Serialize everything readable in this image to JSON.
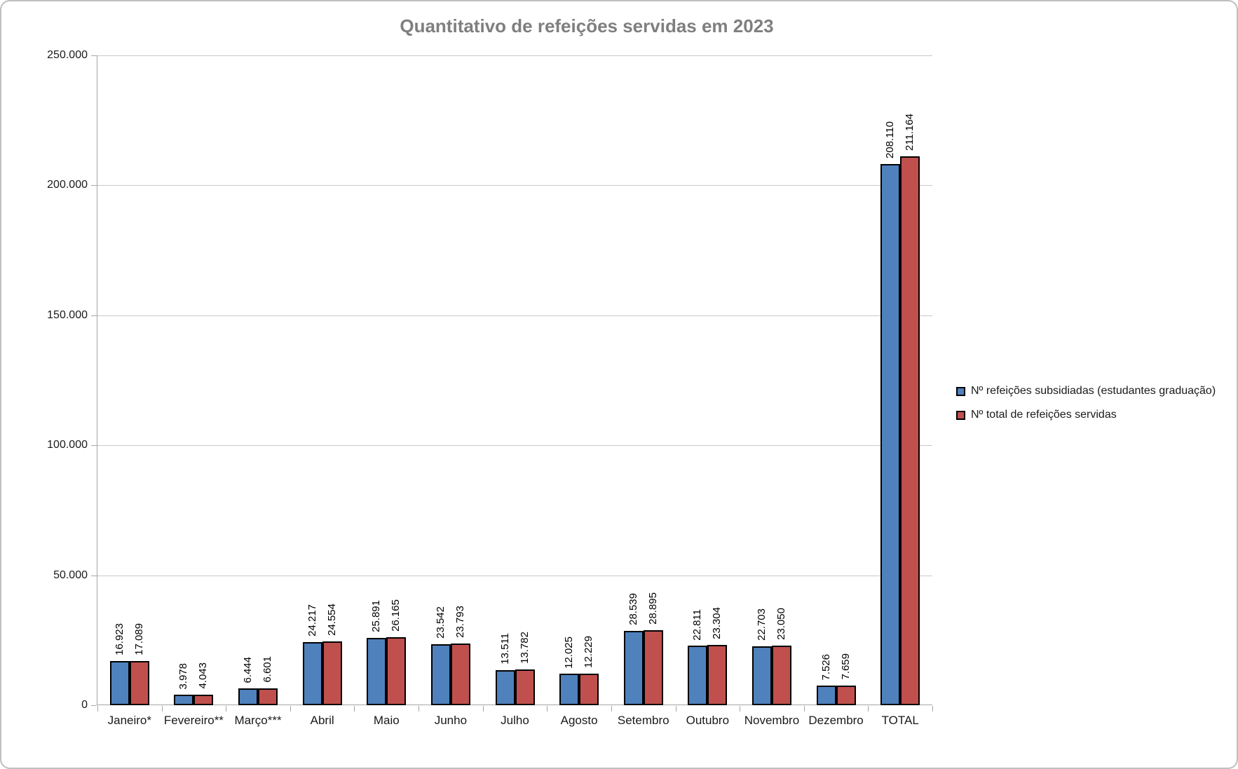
{
  "title": "Quantitativo de refeições servidas em 2023",
  "legend": {
    "items": [
      {
        "label": "Nº refeições subsidiadas (estudantes graduação)",
        "color": "#4F81BD"
      },
      {
        "label": "Nº total de refeições servidas",
        "color": "#C0504D"
      }
    ]
  },
  "colors": {
    "series_blue": "#4F81BD",
    "series_red": "#C0504D",
    "bar_border": "#000000",
    "title_text": "#7F7F7F",
    "gridline": "#C9C9C9",
    "axis_line": "#A6A6A6",
    "frame_border": "#BFBFBF"
  },
  "chart_data": {
    "type": "bar",
    "title": "Quantitativo de refeições servidas em 2023",
    "categories": [
      "Janeiro*",
      "Fevereiro**",
      "Março***",
      "Abril",
      "Maio",
      "Junho",
      "Julho",
      "Agosto",
      "Setembro",
      "Outubro",
      "Novembro",
      "Dezembro",
      "TOTAL"
    ],
    "series": [
      {
        "name": "Nº refeições subsidiadas (estudantes graduação)",
        "color": "#4F81BD",
        "values": [
          16923,
          3978,
          6444,
          24217,
          25891,
          23542,
          13511,
          12025,
          28539,
          22811,
          22703,
          7526,
          208110
        ],
        "labels": [
          "16.923",
          "3.978",
          "6.444",
          "24.217",
          "25.891",
          "23.542",
          "13.511",
          "12.025",
          "28.539",
          "22.811",
          "22.703",
          "7.526",
          "208.110"
        ]
      },
      {
        "name": "Nº total de refeições servidas",
        "color": "#C0504D",
        "values": [
          17089,
          4043,
          6601,
          24554,
          26165,
          23793,
          13782,
          12229,
          28895,
          23304,
          23050,
          7659,
          211164
        ],
        "labels": [
          "17.089",
          "4.043",
          "6.601",
          "24.554",
          "26.165",
          "23.793",
          "13.782",
          "12.229",
          "28.895",
          "23.304",
          "23.050",
          "7.659",
          "211.164"
        ]
      }
    ],
    "xlabel": "",
    "ylabel": "",
    "ylim": [
      0,
      250000
    ],
    "ytick_step": 50000,
    "ytick_labels": [
      "0",
      "50.000",
      "100.000",
      "150.000",
      "200.000",
      "250.000"
    ],
    "grid": true,
    "legend_position": "right",
    "value_labels_rotated": true
  }
}
